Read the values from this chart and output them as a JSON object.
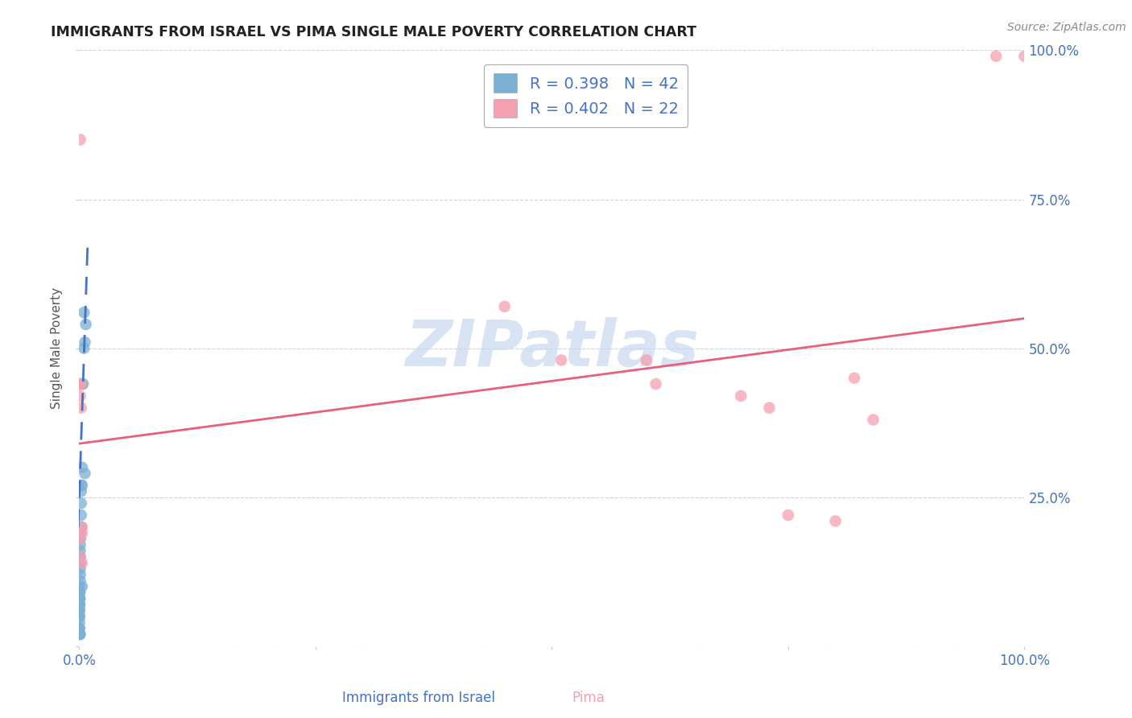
{
  "title": "IMMIGRANTS FROM ISRAEL VS PIMA SINGLE MALE POVERTY CORRELATION CHART",
  "source": "Source: ZipAtlas.com",
  "xlabel_label": "Immigrants from Israel",
  "xlabel_label2": "Pima",
  "ylabel": "Single Male Poverty",
  "watermark": "ZIPatlas",
  "legend_blue_r": "R = 0.398",
  "legend_blue_n": "N = 42",
  "legend_pink_r": "R = 0.402",
  "legend_pink_n": "N = 22",
  "xlim": [
    0.0,
    1.0
  ],
  "ylim": [
    0.0,
    1.0
  ],
  "blue_scatter_x": [
    0.005,
    0.007,
    0.006,
    0.005,
    0.004,
    0.003,
    0.003,
    0.003,
    0.002,
    0.002,
    0.002,
    0.002,
    0.002,
    0.001,
    0.001,
    0.001,
    0.001,
    0.001,
    0.001,
    0.001,
    0.001,
    0.001,
    0.0005,
    0.0005,
    0.0005,
    0.0005,
    0.0005,
    0.0005,
    0.0005,
    0.0005,
    0.0003,
    0.0003,
    0.0003,
    0.0003,
    0.0003,
    0.0002,
    0.0002,
    0.0002,
    0.0002,
    0.006,
    0.003,
    0.001
  ],
  "blue_scatter_y": [
    0.56,
    0.54,
    0.51,
    0.5,
    0.44,
    0.44,
    0.3,
    0.27,
    0.27,
    0.26,
    0.24,
    0.22,
    0.2,
    0.19,
    0.18,
    0.17,
    0.16,
    0.15,
    0.14,
    0.13,
    0.12,
    0.11,
    0.1,
    0.09,
    0.09,
    0.08,
    0.08,
    0.08,
    0.07,
    0.07,
    0.06,
    0.06,
    0.05,
    0.05,
    0.04,
    0.03,
    0.03,
    0.02,
    0.02,
    0.29,
    0.1,
    0.02
  ],
  "pink_scatter_x": [
    0.001,
    0.001,
    0.001,
    0.001,
    0.001,
    0.002,
    0.002,
    0.003,
    0.003,
    0.003,
    0.45,
    0.51,
    0.6,
    0.61,
    0.7,
    0.73,
    0.75,
    0.8,
    0.82,
    0.84,
    0.97,
    1.0
  ],
  "pink_scatter_y": [
    0.85,
    0.44,
    0.42,
    0.18,
    0.15,
    0.44,
    0.4,
    0.2,
    0.19,
    0.14,
    0.57,
    0.48,
    0.48,
    0.44,
    0.42,
    0.4,
    0.22,
    0.21,
    0.45,
    0.38,
    0.99,
    0.99
  ],
  "blue_line_x": [
    -0.001,
    0.009
  ],
  "blue_line_y": [
    0.2,
    0.68
  ],
  "pink_line_x": [
    0.0,
    1.0
  ],
  "pink_line_y": [
    0.34,
    0.55
  ],
  "blue_color": "#7bafd4",
  "pink_color": "#f5a0b0",
  "blue_line_color": "#4472c4",
  "pink_line_color": "#e8607a",
  "watermark_zip_color": "#c8d8f0",
  "watermark_atlas_color": "#c8d8f0",
  "background_color": "#ffffff",
  "grid_color": "#cccccc"
}
